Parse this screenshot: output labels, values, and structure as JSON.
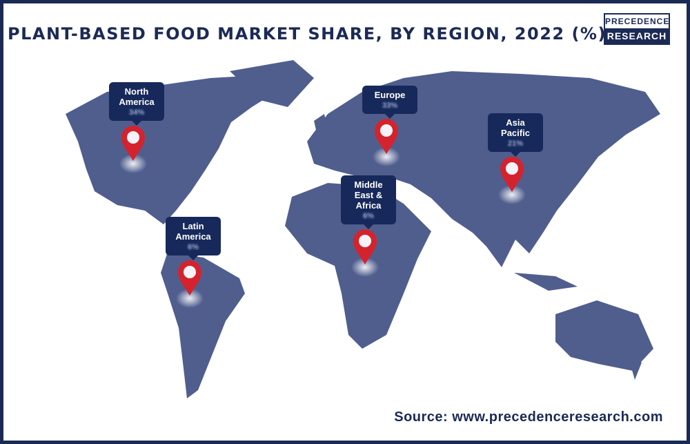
{
  "header": {
    "title": "PLANT-BASED FOOD MARKET SHARE, BY REGION, 2022 (%)",
    "logo": [
      "PRECEDENCE",
      "RESEARCH"
    ]
  },
  "regions": [
    {
      "name": "North America",
      "value": "34%"
    },
    {
      "name": "Europe",
      "value": "33%"
    },
    {
      "name": "Asia Pacific",
      "value": "21%"
    },
    {
      "name": "Middle East & Africa",
      "value": "6%"
    },
    {
      "name": "Latin America",
      "value": "6%"
    }
  ],
  "source": "Source: www.precedenceresearch.com"
}
